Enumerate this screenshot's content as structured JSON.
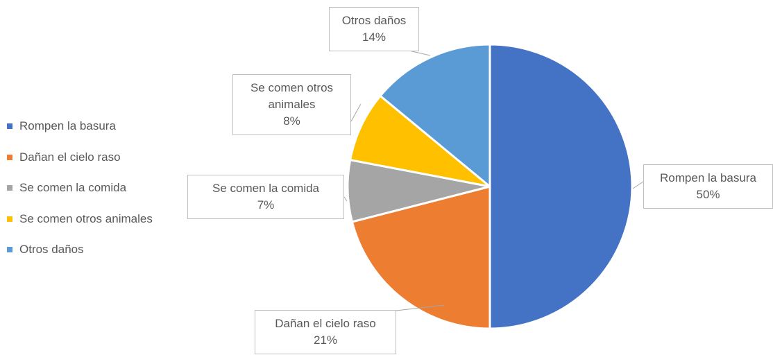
{
  "chart_data": {
    "type": "pie",
    "categories": [
      "Rompen la basura",
      "Dañan el cielo raso",
      "Se comen la comida",
      "Se comen otros animales",
      "Otros daños"
    ],
    "values": [
      50,
      21,
      7,
      8,
      14
    ],
    "value_labels": [
      "50%",
      "21%",
      "7%",
      "8%",
      "14%"
    ],
    "colors": [
      "#4472c4",
      "#ed7d31",
      "#a5a5a5",
      "#ffc000",
      "#5b9bd5"
    ],
    "legend": "left"
  }
}
